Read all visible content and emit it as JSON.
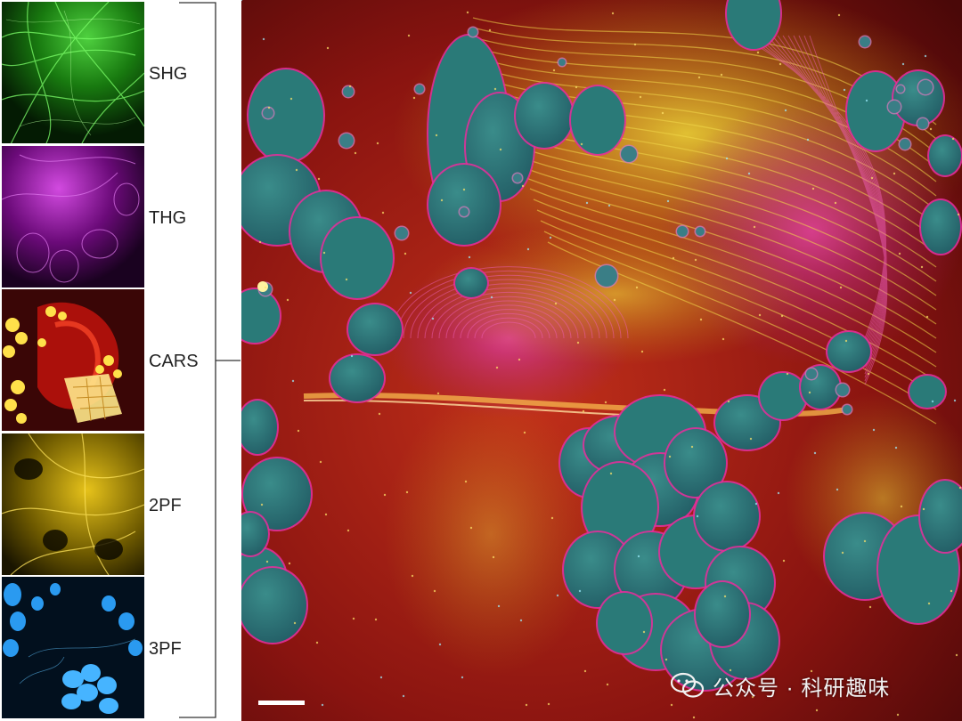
{
  "panels": [
    {
      "label": "SHG",
      "color": "#22c417"
    },
    {
      "label": "THG",
      "color": "#b21cc2"
    },
    {
      "label": "CARS",
      "color": "#e0201a"
    },
    {
      "label": "2PF",
      "color": "#d6b400"
    },
    {
      "label": "3PF",
      "color": "#1e8fe0"
    }
  ],
  "main_image": {
    "fibre_color": "#e8d22a",
    "membrane_color": "#e0309a",
    "cell_color": "#2a7a78",
    "background_color": "#8a1410"
  },
  "watermark": {
    "text": "公众号 · 科研趣味",
    "icon": "wechat-icon"
  }
}
